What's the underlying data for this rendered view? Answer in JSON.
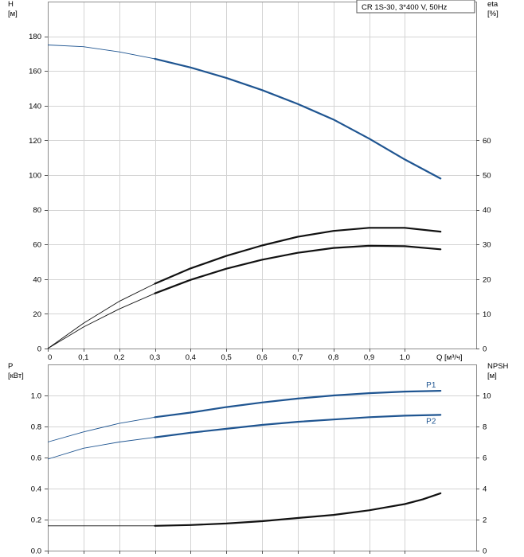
{
  "pump_label": "CR 1S-30, 3*400 V, 50Hz",
  "chart_data": [
    {
      "type": "line",
      "id": "upper",
      "title": "",
      "left_axis": {
        "label_lines": [
          "H",
          "[м]"
        ],
        "range": [
          0,
          200
        ],
        "ticks": [
          0,
          20,
          40,
          60,
          80,
          100,
          120,
          140,
          160,
          180
        ]
      },
      "right_axis": {
        "label_lines": [
          "eta",
          "[%]"
        ],
        "range": [
          0,
          100
        ],
        "ticks": [
          0,
          10,
          20,
          30,
          40,
          50,
          60
        ]
      },
      "x_axis": {
        "label": "Q [м³/ч]",
        "range": [
          0,
          1.2
        ],
        "ticks": [
          0,
          0.1,
          0.2,
          0.3,
          0.4,
          0.5,
          0.6,
          0.7,
          0.8,
          0.9,
          1.0
        ],
        "tick_labels": [
          "0",
          "0,1",
          "0,2",
          "0,3",
          "0,4",
          "0,5",
          "0,6",
          "0,7",
          "0,8",
          "0,9",
          "1,0"
        ]
      },
      "grid": true,
      "series": [
        {
          "axis": "left",
          "color": "#1f5591",
          "x": [
            0,
            0.1,
            0.2,
            0.3,
            0.4,
            0.5,
            0.6,
            0.7,
            0.8,
            0.9,
            1.0,
            1.1
          ],
          "y": [
            175,
            174,
            171,
            167,
            162,
            156,
            149,
            141,
            132,
            121,
            109,
            98
          ],
          "thick_from": 0.3
        },
        {
          "axis": "right",
          "color": "#111111",
          "x": [
            0,
            0.1,
            0.2,
            0.3,
            0.4,
            0.5,
            0.6,
            0.7,
            0.8,
            0.9,
            1.0,
            1.1
          ],
          "y": [
            0,
            7.3,
            13.6,
            18.7,
            23.1,
            26.7,
            29.7,
            32.2,
            33.9,
            34.8,
            34.8,
            33.7
          ],
          "thick_from": 0.3
        },
        {
          "axis": "right",
          "color": "#111111",
          "x": [
            0,
            0.1,
            0.2,
            0.3,
            0.4,
            0.5,
            0.6,
            0.7,
            0.8,
            0.9,
            1.0,
            1.1
          ],
          "y": [
            0,
            6.2,
            11.4,
            15.9,
            19.8,
            23.0,
            25.6,
            27.6,
            29.0,
            29.6,
            29.5,
            28.6
          ],
          "thick_from": 0.3
        }
      ]
    },
    {
      "type": "line",
      "id": "lower",
      "title": "",
      "left_axis": {
        "label_lines": [
          "P",
          "[кВт]"
        ],
        "range": [
          0,
          1.2
        ],
        "ticks": [
          0,
          0.2,
          0.4,
          0.6,
          0.8,
          1.0
        ],
        "tick_labels": [
          "0.0",
          "0.2",
          "0.4",
          "0.6",
          "0.8",
          "1.0"
        ]
      },
      "right_axis": {
        "label_lines": [
          "NPSH",
          "[м]"
        ],
        "range": [
          0,
          12
        ],
        "ticks": [
          0,
          2,
          4,
          6,
          8,
          10
        ]
      },
      "x_axis": {
        "range": [
          0,
          1.2
        ],
        "ticks": [
          0,
          0.1,
          0.2,
          0.3,
          0.4,
          0.5,
          0.6,
          0.7,
          0.8,
          0.9,
          1.0
        ]
      },
      "grid": true,
      "series": [
        {
          "name": "P1",
          "axis": "left",
          "color": "#1f5591",
          "x": [
            0,
            0.1,
            0.2,
            0.3,
            0.4,
            0.5,
            0.6,
            0.7,
            0.8,
            0.9,
            1.0,
            1.1
          ],
          "y": [
            0.7,
            0.765,
            0.82,
            0.86,
            0.89,
            0.925,
            0.955,
            0.98,
            1.0,
            1.015,
            1.025,
            1.03
          ],
          "thick_from": 0.3
        },
        {
          "name": "P2",
          "axis": "left",
          "color": "#1f5591",
          "x": [
            0,
            0.1,
            0.2,
            0.3,
            0.4,
            0.5,
            0.6,
            0.7,
            0.8,
            0.9,
            1.0,
            1.1
          ],
          "y": [
            0.59,
            0.66,
            0.7,
            0.73,
            0.76,
            0.785,
            0.81,
            0.83,
            0.845,
            0.86,
            0.87,
            0.875
          ],
          "thick_from": 0.3
        },
        {
          "axis": "right",
          "color": "#111111",
          "x": [
            0,
            0.1,
            0.2,
            0.3,
            0.4,
            0.5,
            0.6,
            0.7,
            0.8,
            0.9,
            1.0,
            1.05,
            1.1
          ],
          "y": [
            1.6,
            1.6,
            1.6,
            1.6,
            1.65,
            1.75,
            1.9,
            2.1,
            2.3,
            2.6,
            3.0,
            3.3,
            3.7
          ],
          "thick_from": 0.3
        }
      ]
    }
  ]
}
